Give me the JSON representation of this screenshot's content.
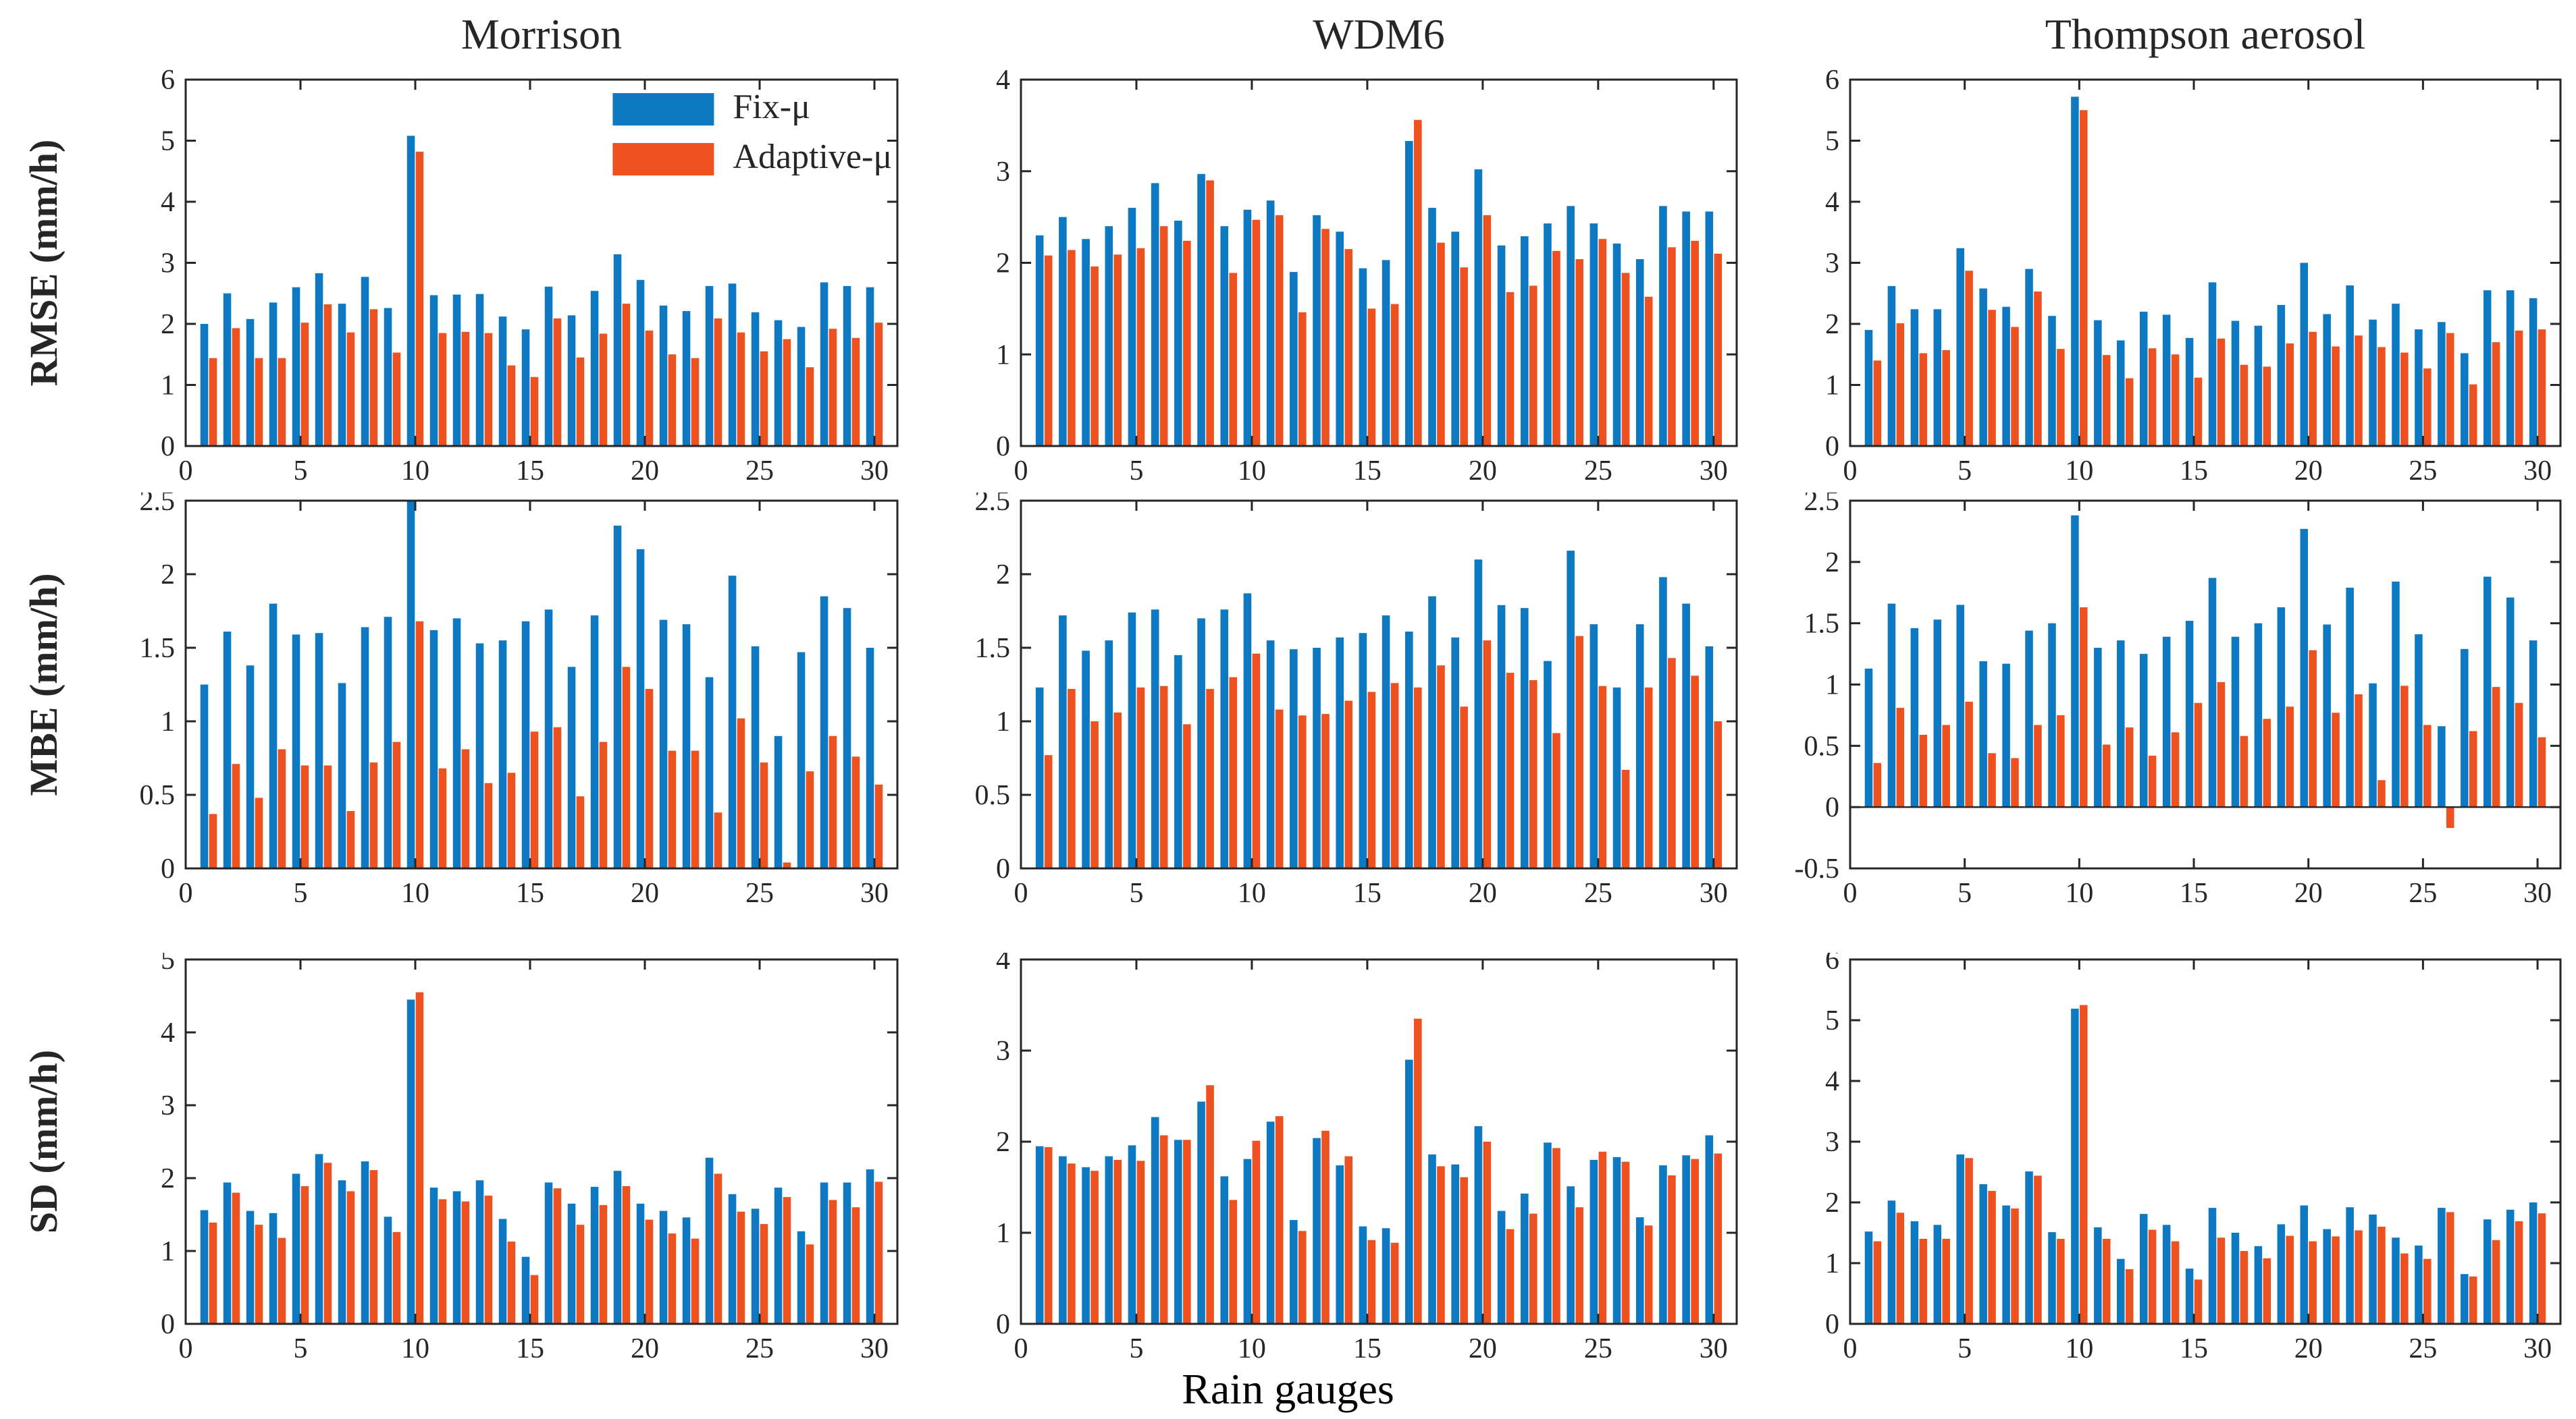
{
  "figure": {
    "xlabel": "Rain gauges"
  },
  "chart_data": {
    "type": "grouped-bar-grid",
    "grid": "3 rows (RMSE, MBE, SD) x 3 columns (Morrison, WDM6, Thompson aerosol)",
    "xlabel": "Rain gauges",
    "categories": [
      1,
      2,
      3,
      4,
      5,
      6,
      7,
      8,
      9,
      10,
      11,
      12,
      13,
      14,
      15,
      16,
      17,
      18,
      19,
      20,
      21,
      22,
      23,
      24,
      25,
      26,
      27,
      28,
      29,
      30
    ],
    "xlim": [
      0,
      31
    ],
    "xticks": [
      0,
      5,
      10,
      15,
      20,
      25,
      30
    ],
    "grid_lines": false,
    "legend_position": "inside top-right of first panel",
    "series_names": [
      "Fix-μ",
      "Adaptive-μ"
    ],
    "series_colors": [
      "#0c79c2",
      "#ee5120"
    ],
    "panels": [
      {
        "title": "Morrison",
        "ylabel": "RMSE (mm/h)",
        "ylim": [
          0,
          6
        ],
        "yticks": [
          0,
          1,
          2,
          3,
          4,
          5,
          6
        ],
        "legend": true,
        "series": [
          {
            "name": "Fix-μ",
            "values": [
              2.0,
              2.5,
              2.08,
              2.35,
              2.6,
              2.83,
              2.33,
              2.77,
              2.26,
              5.08,
              2.47,
              2.48,
              2.49,
              2.12,
              1.91,
              2.61,
              2.14,
              2.54,
              3.14,
              2.72,
              2.3,
              2.21,
              2.62,
              2.66,
              2.19,
              2.06,
              1.95,
              2.68,
              2.62,
              2.6
            ]
          },
          {
            "name": "Adaptive-μ",
            "values": [
              1.44,
              1.93,
              1.44,
              1.44,
              2.02,
              2.32,
              1.86,
              2.24,
              1.53,
              4.82,
              1.85,
              1.87,
              1.85,
              1.32,
              1.13,
              2.09,
              1.45,
              1.84,
              2.33,
              1.89,
              1.5,
              1.44,
              2.09,
              1.86,
              1.55,
              1.75,
              1.29,
              1.92,
              1.77,
              2.02
            ]
          }
        ]
      },
      {
        "title": "WDM6",
        "ylabel": "",
        "ylim": [
          0,
          4
        ],
        "yticks": [
          0,
          1,
          2,
          3,
          4
        ],
        "legend": false,
        "series": [
          {
            "name": "Fix-μ",
            "values": [
              2.3,
              2.5,
              2.26,
              2.4,
              2.6,
              2.87,
              2.46,
              2.97,
              2.4,
              2.58,
              2.68,
              1.9,
              2.52,
              2.34,
              1.94,
              2.03,
              3.33,
              2.6,
              2.34,
              3.02,
              2.19,
              2.29,
              2.43,
              2.62,
              2.43,
              2.21,
              2.04,
              2.62,
              2.56,
              2.56
            ]
          },
          {
            "name": "Adaptive-μ",
            "values": [
              2.08,
              2.14,
              1.96,
              2.09,
              2.16,
              2.4,
              2.24,
              2.9,
              1.89,
              2.47,
              2.52,
              1.46,
              2.37,
              2.15,
              1.5,
              1.55,
              3.56,
              2.22,
              1.95,
              2.52,
              1.68,
              1.75,
              2.13,
              2.04,
              2.26,
              1.89,
              1.63,
              2.17,
              2.24,
              2.1
            ]
          }
        ]
      },
      {
        "title": "Thompson aerosol",
        "ylabel": "",
        "ylim": [
          0,
          6
        ],
        "yticks": [
          0,
          1,
          2,
          3,
          4,
          5,
          6
        ],
        "legend": false,
        "series": [
          {
            "name": "Fix-μ",
            "values": [
              1.9,
              2.62,
              2.24,
              2.24,
              3.24,
              2.58,
              2.28,
              2.9,
              2.13,
              5.72,
              2.06,
              1.73,
              2.2,
              2.15,
              1.77,
              2.68,
              2.05,
              1.97,
              2.31,
              3.0,
              2.16,
              2.63,
              2.07,
              2.33,
              1.91,
              2.03,
              1.52,
              2.55,
              2.55,
              2.42
            ]
          },
          {
            "name": "Adaptive-μ",
            "values": [
              1.4,
              2.01,
              1.52,
              1.57,
              2.87,
              2.23,
              1.95,
              2.53,
              1.59,
              5.5,
              1.49,
              1.11,
              1.6,
              1.5,
              1.12,
              1.76,
              1.33,
              1.3,
              1.68,
              1.87,
              1.63,
              1.81,
              1.62,
              1.53,
              1.27,
              1.85,
              1.01,
              1.7,
              1.89,
              1.91
            ]
          }
        ]
      },
      {
        "title": "",
        "ylabel": "MBE (mm/h)",
        "ylim": [
          0,
          2.5
        ],
        "yticks": [
          0,
          0.5,
          1,
          1.5,
          2,
          2.5
        ],
        "legend": false,
        "series": [
          {
            "name": "Fix-μ",
            "values": [
              1.25,
              1.61,
              1.38,
              1.8,
              1.59,
              1.6,
              1.26,
              1.64,
              1.71,
              2.5,
              1.62,
              1.7,
              1.53,
              1.55,
              1.68,
              1.76,
              1.37,
              1.72,
              2.33,
              2.17,
              1.69,
              1.66,
              1.3,
              1.99,
              1.51,
              0.9,
              1.47,
              1.85,
              1.77,
              1.5
            ]
          },
          {
            "name": "Adaptive-μ",
            "values": [
              0.37,
              0.71,
              0.48,
              0.81,
              0.7,
              0.7,
              0.39,
              0.72,
              0.86,
              1.68,
              0.68,
              0.81,
              0.58,
              0.65,
              0.93,
              0.96,
              0.49,
              0.86,
              1.37,
              1.22,
              0.8,
              0.8,
              0.38,
              1.02,
              0.72,
              0.04,
              0.66,
              0.9,
              0.76,
              0.57
            ]
          }
        ]
      },
      {
        "title": "",
        "ylabel": "",
        "ylim": [
          0,
          2.5
        ],
        "yticks": [
          0,
          0.5,
          1,
          1.5,
          2,
          2.5
        ],
        "legend": false,
        "series": [
          {
            "name": "Fix-μ",
            "values": [
              1.23,
              1.72,
              1.48,
              1.55,
              1.74,
              1.76,
              1.45,
              1.7,
              1.76,
              1.87,
              1.55,
              1.49,
              1.5,
              1.57,
              1.6,
              1.72,
              1.61,
              1.85,
              1.57,
              2.1,
              1.79,
              1.77,
              1.41,
              2.16,
              1.66,
              1.23,
              1.66,
              1.98,
              1.8,
              1.51
            ]
          },
          {
            "name": "Adaptive-μ",
            "values": [
              0.77,
              1.22,
              1.0,
              1.06,
              1.23,
              1.24,
              0.98,
              1.22,
              1.3,
              1.46,
              1.08,
              1.04,
              1.05,
              1.14,
              1.2,
              1.26,
              1.23,
              1.38,
              1.1,
              1.55,
              1.33,
              1.28,
              0.92,
              1.58,
              1.24,
              0.67,
              1.23,
              1.43,
              1.31,
              1.0
            ]
          }
        ]
      },
      {
        "title": "",
        "ylabel": "",
        "ylim": [
          -0.5,
          2.5
        ],
        "yticks": [
          -0.5,
          0,
          0.5,
          1,
          1.5,
          2,
          2.5
        ],
        "legend": false,
        "series": [
          {
            "name": "Fix-μ",
            "values": [
              1.13,
              1.66,
              1.46,
              1.53,
              1.65,
              1.19,
              1.17,
              1.44,
              1.5,
              2.38,
              1.3,
              1.36,
              1.25,
              1.39,
              1.52,
              1.87,
              1.39,
              1.5,
              1.63,
              2.27,
              1.49,
              1.79,
              1.01,
              1.84,
              1.41,
              0.66,
              1.29,
              1.88,
              1.71,
              1.36
            ]
          },
          {
            "name": "Adaptive-μ",
            "values": [
              0.36,
              0.81,
              0.59,
              0.67,
              0.86,
              0.44,
              0.4,
              0.67,
              0.75,
              1.63,
              0.51,
              0.65,
              0.42,
              0.61,
              0.85,
              1.02,
              0.58,
              0.72,
              0.82,
              1.28,
              0.77,
              0.92,
              0.22,
              0.99,
              0.67,
              -0.17,
              0.62,
              0.98,
              0.85,
              0.57
            ]
          }
        ]
      },
      {
        "title": "",
        "ylabel": "SD (mm/h)",
        "ylim": [
          0,
          5
        ],
        "yticks": [
          0,
          1,
          2,
          3,
          4,
          5
        ],
        "legend": false,
        "series": [
          {
            "name": "Fix-μ",
            "values": [
              1.56,
              1.94,
              1.55,
              1.52,
              2.06,
              2.33,
              1.97,
              2.23,
              1.47,
              4.45,
              1.87,
              1.82,
              1.97,
              1.44,
              0.92,
              1.94,
              1.65,
              1.88,
              2.1,
              1.65,
              1.55,
              1.46,
              2.28,
              1.78,
              1.58,
              1.87,
              1.27,
              1.94,
              1.94,
              2.12
            ]
          },
          {
            "name": "Adaptive-μ",
            "values": [
              1.39,
              1.8,
              1.36,
              1.18,
              1.89,
              2.21,
              1.82,
              2.11,
              1.26,
              4.55,
              1.71,
              1.68,
              1.76,
              1.13,
              0.67,
              1.86,
              1.36,
              1.63,
              1.89,
              1.43,
              1.24,
              1.17,
              2.06,
              1.54,
              1.37,
              1.74,
              1.09,
              1.7,
              1.6,
              1.95
            ]
          }
        ]
      },
      {
        "title": "",
        "ylabel": "",
        "ylim": [
          0,
          4
        ],
        "yticks": [
          0,
          1,
          2,
          3,
          4
        ],
        "legend": false,
        "series": [
          {
            "name": "Fix-μ",
            "values": [
              1.95,
              1.84,
              1.72,
              1.84,
              1.96,
              2.27,
              2.02,
              2.44,
              1.62,
              1.81,
              2.22,
              1.14,
              2.04,
              1.74,
              1.07,
              1.05,
              2.9,
              1.86,
              1.75,
              2.17,
              1.24,
              1.43,
              1.99,
              1.51,
              1.8,
              1.83,
              1.17,
              1.74,
              1.85,
              2.07
            ]
          },
          {
            "name": "Adaptive-μ",
            "values": [
              1.94,
              1.76,
              1.68,
              1.8,
              1.79,
              2.07,
              2.02,
              2.62,
              1.36,
              2.01,
              2.28,
              1.02,
              2.12,
              1.84,
              0.92,
              0.89,
              3.35,
              1.73,
              1.61,
              2.0,
              1.04,
              1.21,
              1.93,
              1.28,
              1.89,
              1.78,
              1.08,
              1.63,
              1.81,
              1.87
            ]
          }
        ]
      },
      {
        "title": "",
        "ylabel": "",
        "ylim": [
          0,
          6
        ],
        "yticks": [
          0,
          1,
          2,
          3,
          4,
          5,
          6
        ],
        "legend": false,
        "series": [
          {
            "name": "Fix-μ",
            "values": [
              1.52,
              2.03,
              1.69,
              1.63,
              2.79,
              2.3,
              1.95,
              2.51,
              1.51,
              5.19,
              1.59,
              1.07,
              1.81,
              1.63,
              0.91,
              1.91,
              1.5,
              1.28,
              1.64,
              1.95,
              1.56,
              1.92,
              1.8,
              1.42,
              1.29,
              1.91,
              0.82,
              1.72,
              1.88,
              2.0
            ]
          },
          {
            "name": "Adaptive-μ",
            "values": [
              1.36,
              1.83,
              1.4,
              1.4,
              2.73,
              2.19,
              1.9,
              2.44,
              1.4,
              5.25,
              1.4,
              0.9,
              1.55,
              1.36,
              0.73,
              1.42,
              1.2,
              1.08,
              1.45,
              1.36,
              1.44,
              1.54,
              1.6,
              1.16,
              1.07,
              1.84,
              0.78,
              1.38,
              1.69,
              1.82
            ]
          }
        ]
      }
    ]
  }
}
